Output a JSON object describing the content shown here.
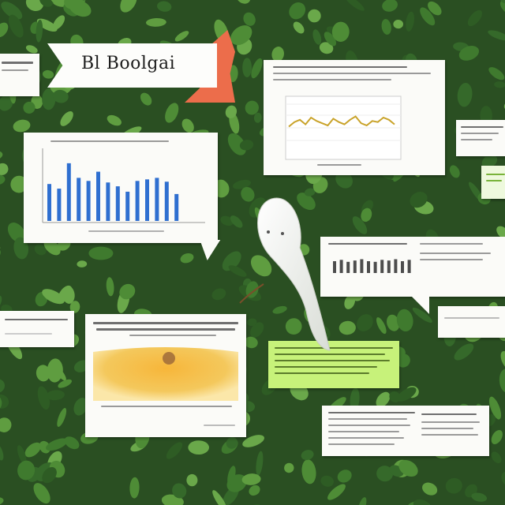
{
  "title": {
    "text": "Bl Boolgai"
  },
  "colors": {
    "background": "#2f5a26",
    "ribbon": "#ec6d4b",
    "bar": "#2f6fd0",
    "line": "#c9a32a",
    "sticky": "#c7f27a"
  },
  "icons": {
    "creature": "white-fish-figure",
    "ribbon": "folded-ribbon"
  },
  "bar_chart_1": {
    "bar_values": [
      48,
      42,
      75,
      56,
      52,
      64,
      50,
      45,
      38,
      52,
      54,
      56,
      51,
      35
    ]
  },
  "line_chart": {
    "y_values": [
      58,
      62,
      64,
      60,
      66,
      63,
      61,
      59,
      65,
      62,
      60,
      64,
      67,
      61,
      59,
      63,
      62,
      66,
      64,
      60
    ]
  },
  "bar_chart_2": {
    "bar_values": [
      18,
      20,
      17,
      19,
      21,
      18,
      17,
      20,
      19,
      21,
      18,
      20
    ]
  }
}
